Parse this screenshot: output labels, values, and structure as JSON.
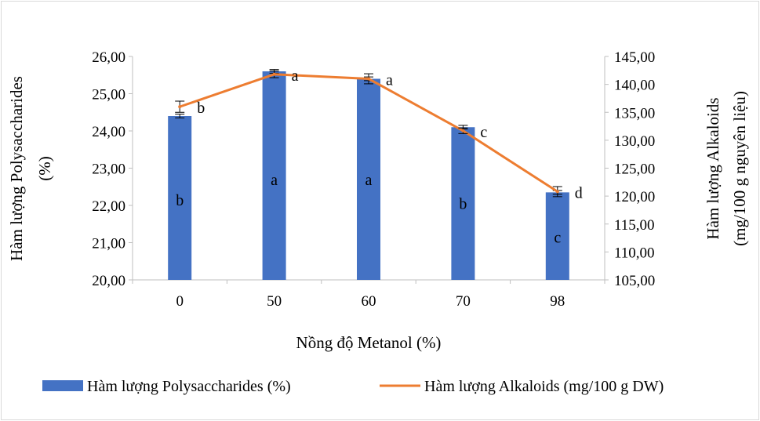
{
  "chart_data": {
    "type": "bar",
    "categories": [
      "0",
      "50",
      "60",
      "70",
      "98"
    ],
    "xlabel": "Nồng độ Metanol (%)",
    "grid": false,
    "legend_position": "bottom",
    "y_left": {
      "label_line1": "Hàm lượng Polysaccharides",
      "label_line2": "(%)",
      "lim": [
        20,
        26
      ],
      "ticks": [
        "20,00",
        "21,00",
        "22,00",
        "23,00",
        "24,00",
        "25,00",
        "26,00"
      ]
    },
    "y_right": {
      "label_line1": "Hàm lượng Alkaloids",
      "label_line2": "(mg/100 g nguyên liệu)",
      "lim": [
        105,
        145
      ],
      "ticks": [
        "105,00",
        "110,00",
        "115,00",
        "120,00",
        "125,00",
        "130,00",
        "135,00",
        "140,00",
        "145,00"
      ]
    },
    "series": [
      {
        "name": "Hàm lượng Polysaccharides (%)",
        "kind": "bar",
        "axis": "left",
        "color": "#4472C4",
        "values": [
          24.4,
          25.6,
          25.4,
          24.1,
          22.35
        ],
        "errors": [
          0.05,
          0.05,
          0.05,
          0.05,
          0.05
        ],
        "letters": [
          "b",
          "a",
          "a",
          "b",
          "c"
        ],
        "letter_levels": [
          22.15,
          22.7,
          22.7,
          22.05,
          21.15
        ]
      },
      {
        "name": "Hàm lượng Alkaloids (mg/100 g DW)",
        "kind": "line",
        "axis": "right",
        "color": "#ED7D31",
        "values": [
          136.0,
          141.8,
          141.0,
          131.7,
          120.8
        ],
        "errors": [
          1.0,
          0.6,
          0.9,
          0.5,
          0.9
        ],
        "letters": [
          "b",
          "a",
          "a",
          "c",
          "d"
        ]
      }
    ]
  }
}
